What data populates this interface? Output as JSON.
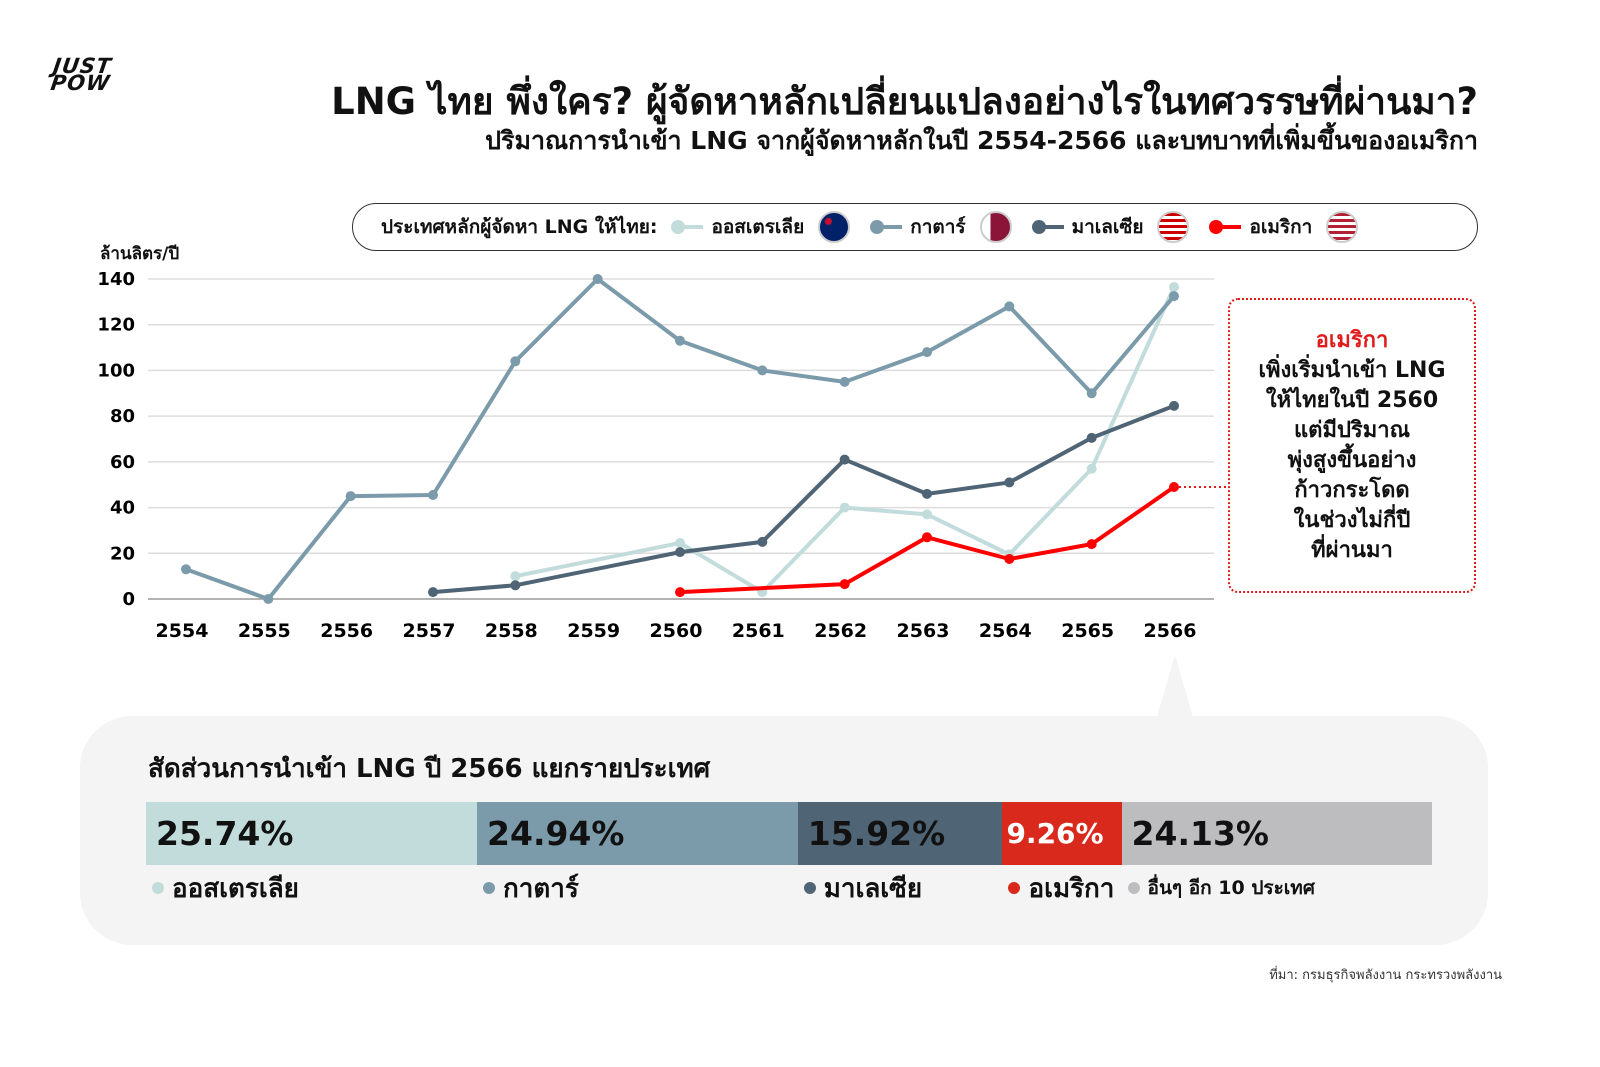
{
  "logo": {
    "line1": "JUST",
    "line2": "POW"
  },
  "title": "LNG ไทย พึ่งใคร? ผู้จัดหาหลักเปลี่ยนแปลงอย่างไรในทศวรรษที่ผ่านมา?",
  "subtitle": "ปริมาณการนำเข้า LNG จากผู้จัดหาหลักในปี 2554-2566 และบทบาทที่เพิ่มขึ้นของอเมริกา",
  "legend": {
    "label": "ประเทศหลักผู้จัดหา LNG ให้ไทย:"
  },
  "colors": {
    "australia": "#c2dcdc",
    "qatar": "#7b9bab",
    "malaysia": "#4f6575",
    "usa": "#ff0000",
    "usa_bar": "#d9291c",
    "others": "#bdbdbf"
  },
  "chart_data": {
    "type": "line",
    "ylabel": "ล้านลิตร/ปี",
    "ylim": [
      0,
      140
    ],
    "yticks": [
      0,
      20,
      40,
      60,
      80,
      100,
      120,
      140
    ],
    "x": [
      "2554",
      "2555",
      "2556",
      "2557",
      "2558",
      "2559",
      "2560",
      "2561",
      "2562",
      "2563",
      "2564",
      "2565",
      "2566"
    ],
    "grid": true,
    "legend_position": "top",
    "series": [
      {
        "key": "australia",
        "name": "ออสเตรเลีย",
        "values": [
          null,
          null,
          null,
          null,
          10,
          null,
          24.5,
          3,
          40,
          37,
          19.5,
          57,
          136.5
        ]
      },
      {
        "key": "qatar",
        "name": "กาตาร์",
        "values": [
          13,
          0,
          45,
          45.5,
          104,
          140,
          113,
          100,
          95,
          108,
          128,
          90,
          132.5
        ]
      },
      {
        "key": "malaysia",
        "name": "มาเลเซีย",
        "values": [
          null,
          null,
          null,
          3,
          6,
          null,
          20.5,
          25,
          61,
          46,
          51,
          70.5,
          84.5
        ]
      },
      {
        "key": "usa",
        "name": "อเมริกา",
        "values": [
          null,
          null,
          null,
          null,
          null,
          null,
          3,
          null,
          6.5,
          27,
          17.5,
          24,
          49
        ]
      }
    ]
  },
  "callout": {
    "highlight": "อเมริกา",
    "lines": [
      "เพิ่งเริ่มนำเข้า LNG",
      "ให้ไทยในปี 2560",
      "แต่มีปริมาณ",
      "พุ่งสูงขึ้นอย่าง",
      "ก้าวกระโดด",
      "ในช่วงไม่กี่ปี",
      "ที่ผ่านมา"
    ]
  },
  "share": {
    "title": "สัดส่วนการนำเข้า LNG ปี 2566 แยกรายประเทศ",
    "items": [
      {
        "key": "australia",
        "label": "ออสเตรเลีย",
        "value": "25.74%",
        "pct": 25.74
      },
      {
        "key": "qatar",
        "label": "กาตาร์",
        "value": "24.94%",
        "pct": 24.94
      },
      {
        "key": "malaysia",
        "label": "มาเลเซีย",
        "value": "15.92%",
        "pct": 15.92
      },
      {
        "key": "usa",
        "label": "อเมริกา",
        "value": "9.26%",
        "pct": 9.26
      },
      {
        "key": "others",
        "label": "อื่นๆ อีก 10 ประเทศ",
        "value": "24.13%",
        "pct": 24.13
      }
    ]
  },
  "source": "ที่มา: กรมธุรกิจพลังงาน กระทรวงพลังงาน"
}
